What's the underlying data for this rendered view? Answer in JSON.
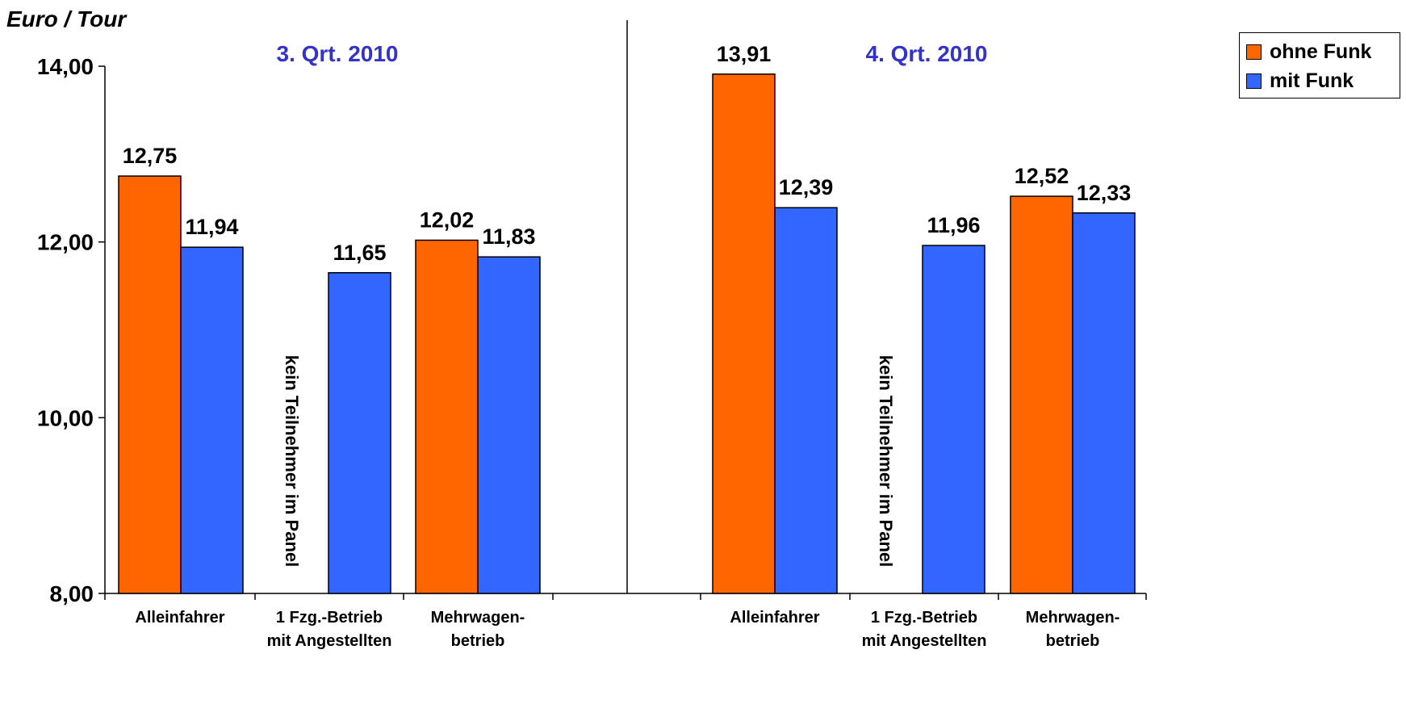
{
  "chart_data": {
    "type": "bar",
    "ylabel": "Euro / Tour",
    "ylim": [
      8,
      14
    ],
    "yticks": [
      "8,00",
      "10,00",
      "12,00",
      "14,00"
    ],
    "categories": [
      "Alleinfahrer",
      "1 Fzg.-Betrieb mit Angestellten",
      "Mehrwagen-betrieb"
    ],
    "category_labels": [
      [
        "Alleinfahrer"
      ],
      [
        "1 Fzg.-Betrieb",
        "mit Angestellten"
      ],
      [
        "Mehrwagen-",
        "betrieb"
      ]
    ],
    "legend_position": "top-right",
    "colors": {
      "ohne Funk": "#ff6600",
      "mit Funk": "#3366ff",
      "group_title": "#3333cc"
    },
    "groups": [
      {
        "title": "3. Qrt. 2010",
        "series": [
          {
            "name": "ohne Funk",
            "values": [
              12.75,
              null,
              12.02
            ],
            "labels": [
              "12,75",
              "",
              "12,02"
            ]
          },
          {
            "name": "mit Funk",
            "values": [
              11.94,
              11.65,
              11.83
            ],
            "labels": [
              "11,94",
              "11,65",
              "11,83"
            ]
          }
        ],
        "annotation": "kein Teilnehmer im Panel"
      },
      {
        "title": "4. Qrt. 2010",
        "series": [
          {
            "name": "ohne Funk",
            "values": [
              13.91,
              null,
              12.52
            ],
            "labels": [
              "13,91",
              "",
              "12,52"
            ]
          },
          {
            "name": "mit Funk",
            "values": [
              12.39,
              11.96,
              12.33
            ],
            "labels": [
              "12,39",
              "11,96",
              "12,33"
            ]
          }
        ],
        "annotation": "kein Teilnehmer im Panel"
      }
    ]
  },
  "legend": {
    "items": [
      {
        "label": "ohne Funk",
        "color": "#ff6600"
      },
      {
        "label": "mit Funk",
        "color": "#3366ff"
      }
    ]
  }
}
